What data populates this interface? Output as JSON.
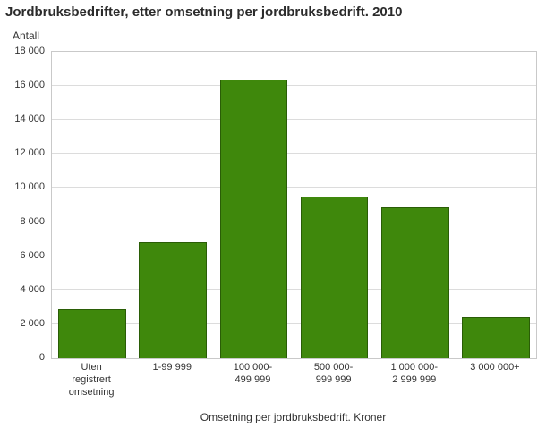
{
  "chart_data": {
    "type": "bar",
    "title": "Jordbruksbedrifter, etter omsetning per jordbruksbedrift. 2010",
    "ylabel": "Antall",
    "xlabel": "Omsetning per jordbruksbedrift. Kroner",
    "categories": [
      "Uten\nregistrert\nomsetning",
      "1-99 999",
      "100 000-\n499 999",
      "500 000-\n999 999",
      "1 000 000-\n2 999 999",
      "3 000 000+"
    ],
    "values": [
      2900,
      6800,
      16400,
      9500,
      8850,
      2400
    ],
    "ylim": [
      0,
      18000
    ],
    "ytick_step": 2000,
    "grid": true,
    "legend": "none",
    "bar_color": "#3f880c",
    "bar_border_color": "#2a5d06",
    "grid_color": "#dcdcdc",
    "axis_color": "#c9c9c9"
  }
}
